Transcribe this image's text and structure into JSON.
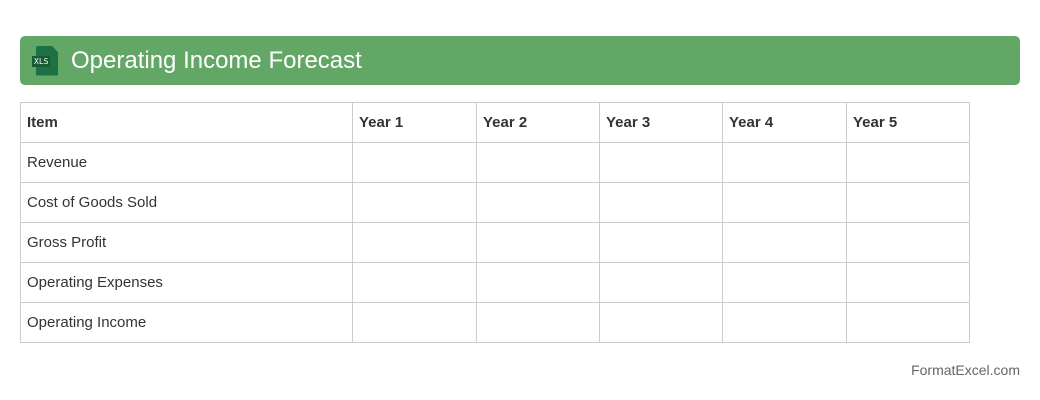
{
  "header": {
    "title": "Operating Income Forecast",
    "icon": "xls-file-icon",
    "icon_label": "XLS",
    "color": "#63a766"
  },
  "table": {
    "columns": [
      "Item",
      "Year 1",
      "Year 2",
      "Year 3",
      "Year 4",
      "Year 5"
    ],
    "rows": [
      "Revenue",
      "Cost of Goods Sold",
      "Gross Profit",
      "Operating Expenses",
      "Operating Income"
    ]
  },
  "footer": {
    "text": "FormatExcel.com"
  }
}
